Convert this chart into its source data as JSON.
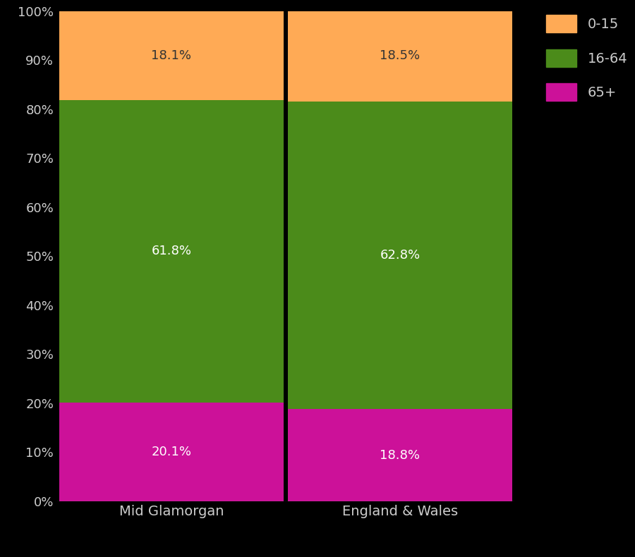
{
  "categories": [
    "Mid Glamorgan",
    "England & Wales"
  ],
  "series": {
    "65+": [
      20.1,
      18.8
    ],
    "16-64": [
      61.8,
      62.8
    ],
    "0-15": [
      18.1,
      18.5
    ]
  },
  "colors": {
    "0-15": "#FFAA55",
    "16-64": "#4B8B1A",
    "65+": "#CC1199"
  },
  "labels": {
    "65+": [
      "20.1%",
      "18.8%"
    ],
    "16-64": [
      "61.8%",
      "62.8%"
    ],
    "0-15": [
      "18.1%",
      "18.5%"
    ]
  },
  "label_colors": {
    "65+": "white",
    "16-64": "white",
    "0-15": "#333333"
  },
  "background_color": "#000000",
  "tick_label_color": "#cccccc",
  "bar_width": 0.98,
  "ylim": [
    0,
    100
  ],
  "yticks": [
    0,
    10,
    20,
    30,
    40,
    50,
    60,
    70,
    80,
    90,
    100
  ],
  "ytick_labels": [
    "0%",
    "10%",
    "20%",
    "30%",
    "40%",
    "50%",
    "60%",
    "70%",
    "80%",
    "90%",
    "100%"
  ],
  "legend_labels": [
    "0-15",
    "16-64",
    "65+"
  ],
  "divider_color": "#000000"
}
